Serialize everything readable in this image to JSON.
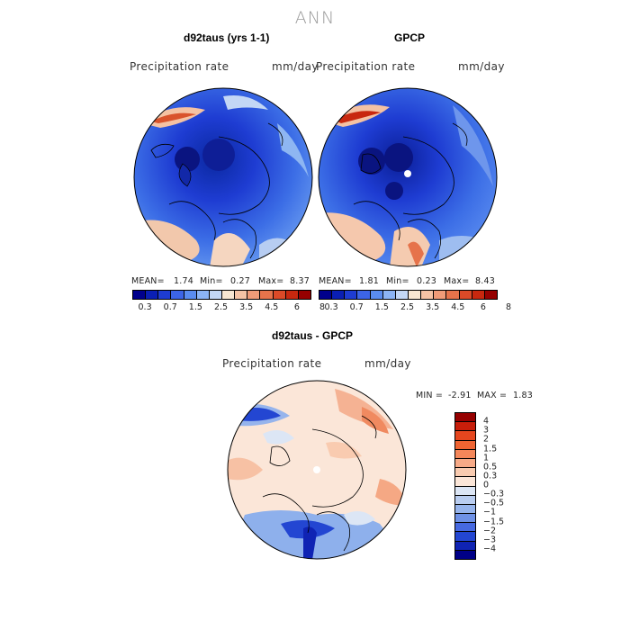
{
  "title": "ANN",
  "panels": {
    "left": {
      "title": "d92taus (yrs 1-1)",
      "variable": "Precipitation rate",
      "units": "mm/day",
      "mean_label": "MEAN=",
      "mean": "1.74",
      "min_label": "Min=",
      "min": "0.27",
      "max_label": "Max=",
      "max": "8.37"
    },
    "right": {
      "title": "GPCP",
      "variable": "Precipitation rate",
      "units": "mm/day",
      "mean_label": "MEAN=",
      "mean": "1.81",
      "min_label": "Min=",
      "min": "0.23",
      "max_label": "Max=",
      "max": "8.43"
    },
    "diff": {
      "title": "d92taus - GPCP",
      "variable": "Precipitation rate",
      "units": "mm/day",
      "min_label": "MIN =",
      "min": "-2.91",
      "max_label": "MAX =",
      "max": "1.83"
    }
  },
  "abs_colorbar": {
    "ticks": [
      "0.3",
      "0.7",
      "1.5",
      "2.5",
      "3.5",
      "4.5",
      "6",
      "8"
    ],
    "colors": [
      "#00008c",
      "#0a1fb4",
      "#1e3cd2",
      "#3c64e6",
      "#5a8cf0",
      "#8cb4f5",
      "#c3d7f5",
      "#f7e6d2",
      "#f5c3a5",
      "#f09b78",
      "#e6734b",
      "#dc4a28",
      "#c8280f",
      "#960000"
    ]
  },
  "diff_colorbar": {
    "ticks": [
      "4",
      "3",
      "2",
      "1.5",
      "1",
      "0.5",
      "0.3",
      "0",
      "−0.3",
      "−0.5",
      "−1",
      "−1.5",
      "−2",
      "−3",
      "−4"
    ],
    "colors": [
      "#960000",
      "#c81e0a",
      "#e6461e",
      "#f06432",
      "#f5875a",
      "#f7aa87",
      "#f9cbb0",
      "#fbe6d8",
      "#dce6f5",
      "#b9cdf0",
      "#96b4ec",
      "#6e91e6",
      "#4669e1",
      "#2346d2",
      "#0f23b4",
      "#000087"
    ]
  }
}
